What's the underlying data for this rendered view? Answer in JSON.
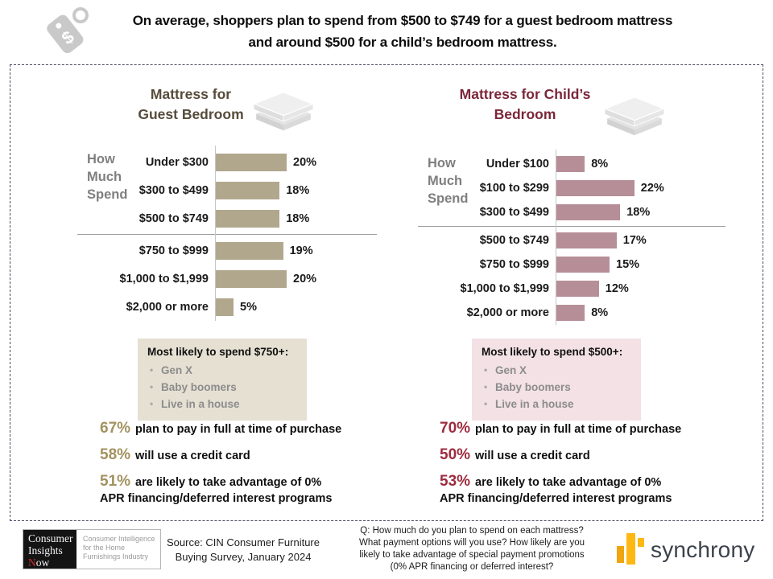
{
  "header": {
    "line1": "On average, shoppers plan to spend from $500 to $749 for a guest bedroom mattress",
    "line2": "and around $500 for a child’s bedroom mattress.",
    "tag_icon": "price-tag-icon",
    "tag_symbol": "$"
  },
  "chart_data": [
    {
      "type": "bar",
      "orientation": "horizontal",
      "title": "Mattress for Guest Bedroom",
      "title_lines": [
        "Mattress for",
        "Guest Bedroom"
      ],
      "title_color": "#564b3b",
      "side_label": "How Much Spend",
      "side_label_lines": [
        "How",
        "Much",
        "Spend"
      ],
      "categories": [
        "Under $300",
        "$300 to $499",
        "$500 to $749",
        "$750 to $999",
        "$1,000 to $1,999",
        "$2,000 or more"
      ],
      "values": [
        20,
        18,
        18,
        19,
        20,
        5
      ],
      "value_labels": [
        "20%",
        "18%",
        "18%",
        "19%",
        "20%",
        "5%"
      ],
      "divider_after_category": "$500 to $749",
      "bar_color": "#b1a78d",
      "xlabel": "",
      "ylabel": "",
      "xlim": [
        0,
        25
      ],
      "grid": false,
      "legend": "none",
      "icon": "mattress-icon"
    },
    {
      "type": "bar",
      "orientation": "horizontal",
      "title": "Mattress for Child’s Bedroom",
      "title_lines": [
        "Mattress for Child’s",
        "Bedroom"
      ],
      "title_color": "#7c2639",
      "side_label": "How Much Spend",
      "side_label_lines": [
        "How",
        "Much",
        "Spend"
      ],
      "categories": [
        "Under $100",
        "$100 to $299",
        "$300 to $499",
        "$500 to $749",
        "$750 to $999",
        "$1,000 to $1,999",
        "$2,000 or more"
      ],
      "values": [
        8,
        22,
        18,
        17,
        15,
        12,
        8
      ],
      "value_labels": [
        "8%",
        "22%",
        "18%",
        "17%",
        "15%",
        "12%",
        "8%"
      ],
      "divider_after_category": "$300 to $499",
      "bar_color": "#b68e97",
      "xlabel": "",
      "ylabel": "",
      "xlim": [
        0,
        25
      ],
      "grid": false,
      "legend": "none",
      "icon": "mattress-icon"
    }
  ],
  "callouts": [
    {
      "title": "Most likely to spend $750+:",
      "items": [
        "Gen X",
        "Baby boomers",
        "Live in a house"
      ],
      "bg_color": "#e6e0d3"
    },
    {
      "title": "Most likely to spend $500+:",
      "items": [
        "Gen X",
        "Baby boomers",
        "Live in a house"
      ],
      "bg_color": "#f3e1e6"
    }
  ],
  "stats": [
    {
      "accent_color": "#a2925f",
      "items": [
        {
          "pct": "67%",
          "line1": "plan to pay in full at time of purchase",
          "line2": ""
        },
        {
          "pct": "58%",
          "line1": "will use a credit card",
          "line2": ""
        },
        {
          "pct": "51%",
          "line1": "are likely to take advantage of 0%",
          "line2": "APR financing/deferred interest programs"
        }
      ]
    },
    {
      "accent_color": "#9e2b3f",
      "items": [
        {
          "pct": "70%",
          "line1": "plan to pay in full at time of purchase",
          "line2": ""
        },
        {
          "pct": "50%",
          "line1": "will use a credit card",
          "line2": ""
        },
        {
          "pct": "53%",
          "line1": "are likely to take advantage of 0%",
          "line2": "APR financing/deferred interest programs"
        }
      ]
    }
  ],
  "footer": {
    "logo": {
      "word1": "Consumer",
      "word2": "Insights",
      "word3_initial": "N",
      "word3_rest": "ow",
      "tagline_lines": [
        "Consumer Intelligence",
        "for the Home",
        "Furnishings Industry"
      ]
    },
    "source_lines": [
      "Source: CIN Consumer Furniture",
      "Buying Survey, January 2024"
    ],
    "question_lines": [
      "Q: How much do you plan to spend on each mattress?",
      "What payment options will you use? How likely are you",
      "likely to take advantage of special payment promotions",
      "(0% APR financing or deferred interest?"
    ],
    "brand": "synchrony",
    "brand_mark_colors": [
      "#efa50f",
      "#fdb813"
    ]
  }
}
